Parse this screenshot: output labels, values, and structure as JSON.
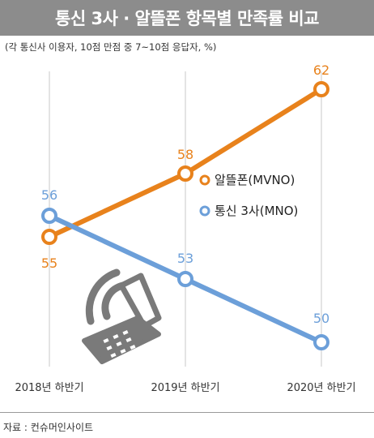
{
  "title": "통신 3사 · 알뜰폰 항목별 만족률 비교",
  "subtitle": "(각 통신사 이용자, 10점 만점 중 7~10점 응답자, %)",
  "source": "자료 : 컨슈머인사이트",
  "colors": {
    "mvno": "#e8821c",
    "mno": "#6c9fd9",
    "header": "#8c8c8c",
    "icon": "#7a7a7a"
  },
  "chart_data": {
    "type": "line",
    "title": "통신 3사 · 알뜰폰 항목별 만족률 비교",
    "categories": [
      "2018년 하반기",
      "2019년 하반기",
      "2020년 하반기"
    ],
    "series": [
      {
        "name": "알뜰폰(MVNO)",
        "values": [
          55,
          58,
          62
        ],
        "color": "#e8821c"
      },
      {
        "name": "통신 3사(MNO)",
        "values": [
          56,
          53,
          50
        ],
        "color": "#6c9fd9"
      }
    ],
    "legend": "right"
  }
}
